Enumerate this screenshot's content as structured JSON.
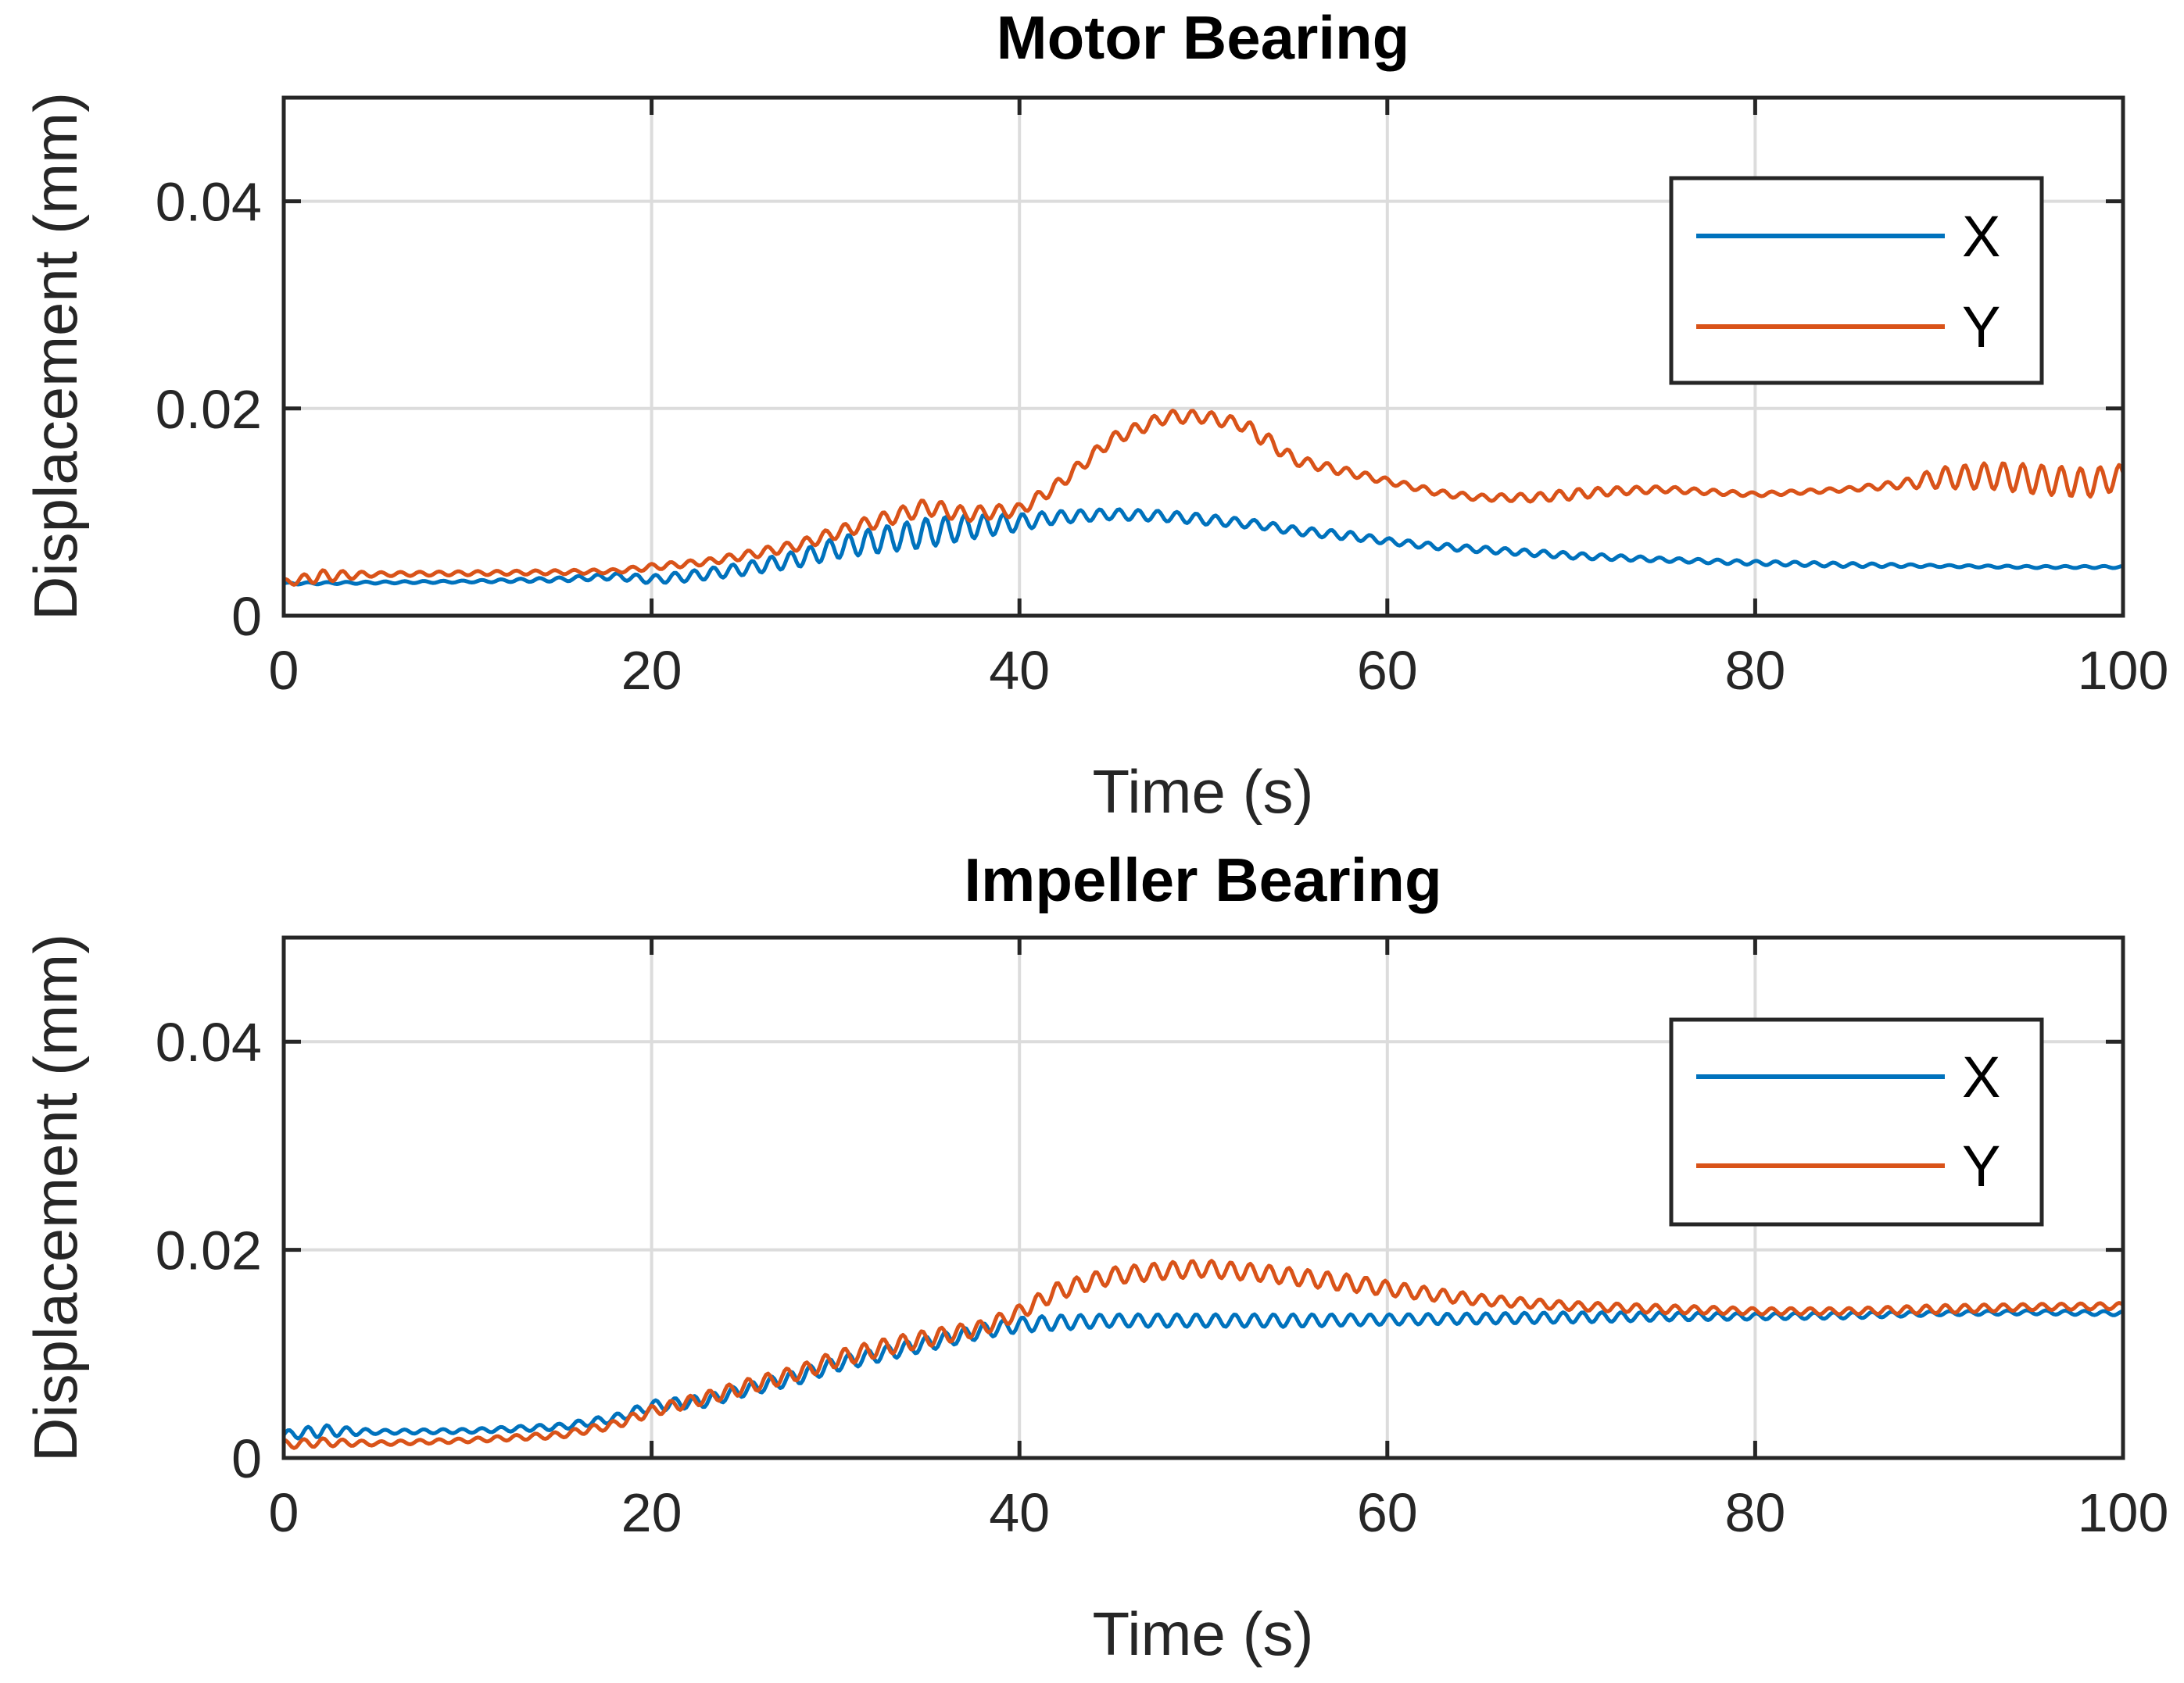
{
  "chart_data": [
    {
      "type": "line",
      "title": "Motor Bearing",
      "xlabel": "Time (s)",
      "ylabel": "Displacement (mm)",
      "xlim": [
        0,
        100
      ],
      "ylim": [
        0,
        0.05
      ],
      "xticks": [
        0,
        20,
        40,
        60,
        80,
        100
      ],
      "xtick_labels": [
        "0",
        "20",
        "40",
        "60",
        "80",
        "100"
      ],
      "yticks": [
        0,
        0.02,
        0.04
      ],
      "ytick_labels": [
        "0",
        "0.02",
        "0.04"
      ],
      "grid": true,
      "legend_position": "top-right",
      "series": [
        {
          "name": "X",
          "color": "#0072BD",
          "x": [
            0,
            5,
            10,
            15,
            18,
            20,
            22,
            25,
            28,
            30,
            32,
            35,
            37,
            40,
            42,
            45,
            48,
            50,
            53,
            55,
            58,
            60,
            62,
            65,
            70,
            75,
            80,
            85,
            90,
            95,
            100
          ],
          "y": [
            0.0031,
            0.0032,
            0.0033,
            0.0035,
            0.0038,
            0.0035,
            0.0038,
            0.0045,
            0.0055,
            0.0065,
            0.0072,
            0.008,
            0.0085,
            0.009,
            0.0095,
            0.0098,
            0.0096,
            0.0093,
            0.0088,
            0.0082,
            0.0077,
            0.0072,
            0.0068,
            0.0064,
            0.0058,
            0.0054,
            0.0051,
            0.0049,
            0.0048,
            0.0047,
            0.0047
          ],
          "ripple": [
            0.0001,
            0.0001,
            0.0001,
            0.0002,
            0.0003,
            0.0004,
            0.0005,
            0.0006,
            0.0008,
            0.001,
            0.0012,
            0.0014,
            0.0012,
            0.0008,
            0.0006,
            0.0005,
            0.0005,
            0.0005,
            0.0004,
            0.0004,
            0.0004,
            0.0003,
            0.0003,
            0.0003,
            0.0003,
            0.0002,
            0.0002,
            0.0002,
            0.0001,
            0.0001,
            0.0001
          ]
        },
        {
          "name": "Y",
          "color": "#D95319",
          "x": [
            0,
            2,
            5,
            10,
            15,
            18,
            20,
            23,
            25,
            28,
            30,
            33,
            35,
            37,
            40,
            42,
            45,
            48,
            50,
            52,
            53,
            55,
            58,
            60,
            63,
            65,
            68,
            70,
            72,
            75,
            80,
            85,
            88,
            90,
            93,
            95,
            98,
            100
          ],
          "y": [
            0.0032,
            0.0038,
            0.004,
            0.0041,
            0.0042,
            0.0043,
            0.0047,
            0.0052,
            0.0058,
            0.0068,
            0.008,
            0.0095,
            0.0105,
            0.0098,
            0.0102,
            0.0125,
            0.017,
            0.0192,
            0.0192,
            0.0185,
            0.0175,
            0.015,
            0.0138,
            0.013,
            0.0118,
            0.0114,
            0.0114,
            0.0117,
            0.012,
            0.0122,
            0.0117,
            0.0122,
            0.0127,
            0.0133,
            0.0135,
            0.0132,
            0.0128,
            0.0134
          ],
          "ripple": [
            0.0003,
            0.0006,
            0.0002,
            0.0002,
            0.0002,
            0.0002,
            0.0003,
            0.0003,
            0.0004,
            0.0005,
            0.0006,
            0.0007,
            0.0008,
            0.0007,
            0.0006,
            0.0006,
            0.0006,
            0.0006,
            0.0006,
            0.0006,
            0.0008,
            0.0005,
            0.0004,
            0.0003,
            0.0003,
            0.0003,
            0.0004,
            0.0005,
            0.0004,
            0.0003,
            0.0002,
            0.0002,
            0.0004,
            0.001,
            0.0013,
            0.0014,
            0.0014,
            0.0012
          ]
        }
      ]
    },
    {
      "type": "line",
      "title": "Impeller Bearing",
      "xlabel": "Time (s)",
      "ylabel": "Displacement (mm)",
      "xlim": [
        0,
        100
      ],
      "ylim": [
        0,
        0.05
      ],
      "xticks": [
        0,
        20,
        40,
        60,
        80,
        100
      ],
      "xtick_labels": [
        "0",
        "20",
        "40",
        "60",
        "80",
        "100"
      ],
      "yticks": [
        0,
        0.02,
        0.04
      ],
      "ytick_labels": [
        "0",
        "0.02",
        "0.04"
      ],
      "grid": true,
      "legend_position": "top-right",
      "series": [
        {
          "name": "X",
          "color": "#0072BD",
          "x": [
            0,
            2,
            5,
            10,
            15,
            18,
            20,
            23,
            25,
            28,
            30,
            33,
            35,
            38,
            40,
            42,
            45,
            50,
            55,
            60,
            65,
            70,
            75,
            80,
            85,
            90,
            95,
            100
          ],
          "y": [
            0.0022,
            0.0026,
            0.0025,
            0.0026,
            0.003,
            0.0038,
            0.005,
            0.0055,
            0.0065,
            0.0078,
            0.009,
            0.0102,
            0.011,
            0.0122,
            0.0128,
            0.013,
            0.0132,
            0.0132,
            0.0132,
            0.0133,
            0.0134,
            0.0135,
            0.0136,
            0.0136,
            0.0137,
            0.0139,
            0.014,
            0.0139
          ],
          "ripple": [
            0.0004,
            0.0006,
            0.0002,
            0.0002,
            0.0003,
            0.0004,
            0.0005,
            0.0006,
            0.0006,
            0.0007,
            0.0007,
            0.0007,
            0.0007,
            0.0007,
            0.0007,
            0.0007,
            0.0006,
            0.0006,
            0.0006,
            0.0005,
            0.0005,
            0.0005,
            0.0004,
            0.0003,
            0.0003,
            0.0002,
            0.0002,
            0.0002
          ]
        },
        {
          "name": "Y",
          "color": "#D95319",
          "x": [
            0,
            2,
            5,
            10,
            15,
            18,
            20,
            23,
            25,
            28,
            30,
            33,
            35,
            38,
            40,
            42,
            45,
            48,
            50,
            53,
            55,
            58,
            60,
            63,
            65,
            70,
            75,
            80,
            85,
            90,
            95,
            100
          ],
          "y": [
            0.0013,
            0.0015,
            0.0014,
            0.0017,
            0.0022,
            0.0032,
            0.0045,
            0.0058,
            0.0068,
            0.0082,
            0.0095,
            0.0108,
            0.0115,
            0.0125,
            0.014,
            0.016,
            0.0175,
            0.018,
            0.0182,
            0.0178,
            0.0174,
            0.0168,
            0.0163,
            0.0156,
            0.0152,
            0.0146,
            0.0143,
            0.0141,
            0.0141,
            0.0143,
            0.0145,
            0.0146
          ],
          "ripple": [
            0.0004,
            0.0004,
            0.0002,
            0.0002,
            0.0003,
            0.0004,
            0.0005,
            0.0006,
            0.0007,
            0.0007,
            0.0008,
            0.0008,
            0.0008,
            0.0007,
            0.0007,
            0.0008,
            0.0008,
            0.0008,
            0.0008,
            0.0008,
            0.0008,
            0.0008,
            0.0007,
            0.0006,
            0.0005,
            0.0004,
            0.0004,
            0.0003,
            0.0003,
            0.0004,
            0.0003,
            0.0003
          ]
        }
      ]
    }
  ]
}
